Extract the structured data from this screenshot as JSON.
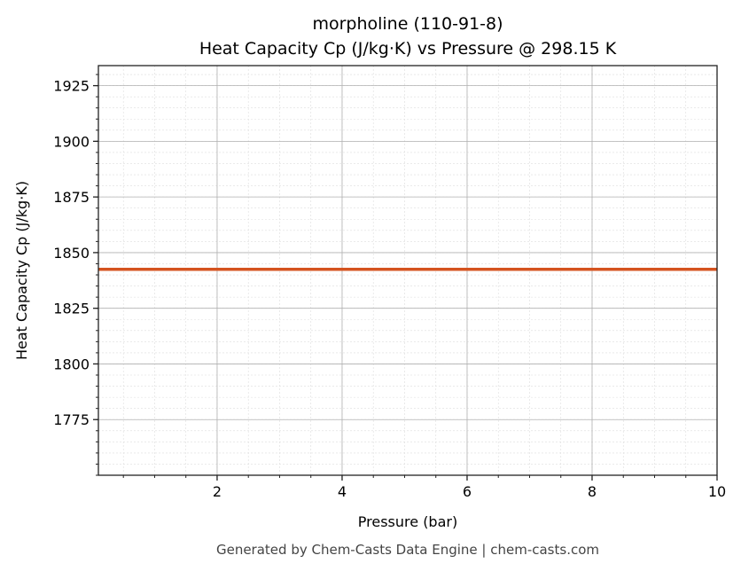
{
  "chart_data": {
    "type": "line",
    "title": "morpholine (110-91-8)",
    "subtitle": "Heat Capacity Cp (J/kg·K) vs Pressure @ 298.15 K",
    "xlabel": "Pressure (bar)",
    "ylabel": "Heat Capacity Cp (J/kg·K)",
    "xlim": [
      0.1,
      10
    ],
    "ylim": [
      1750,
      1934
    ],
    "xticks": [
      2,
      4,
      6,
      8,
      10
    ],
    "yticks": [
      1775,
      1800,
      1825,
      1850,
      1875,
      1900,
      1925
    ],
    "x_minor_step": 0.5,
    "y_minor_step": 5,
    "grid": true,
    "series": [
      {
        "name": "Cp",
        "color": "#d4531f",
        "x": [
          0.1,
          10
        ],
        "y": [
          1842.5,
          1842.5
        ]
      }
    ]
  },
  "footer": "Generated by Chem-Casts Data Engine | chem-casts.com"
}
